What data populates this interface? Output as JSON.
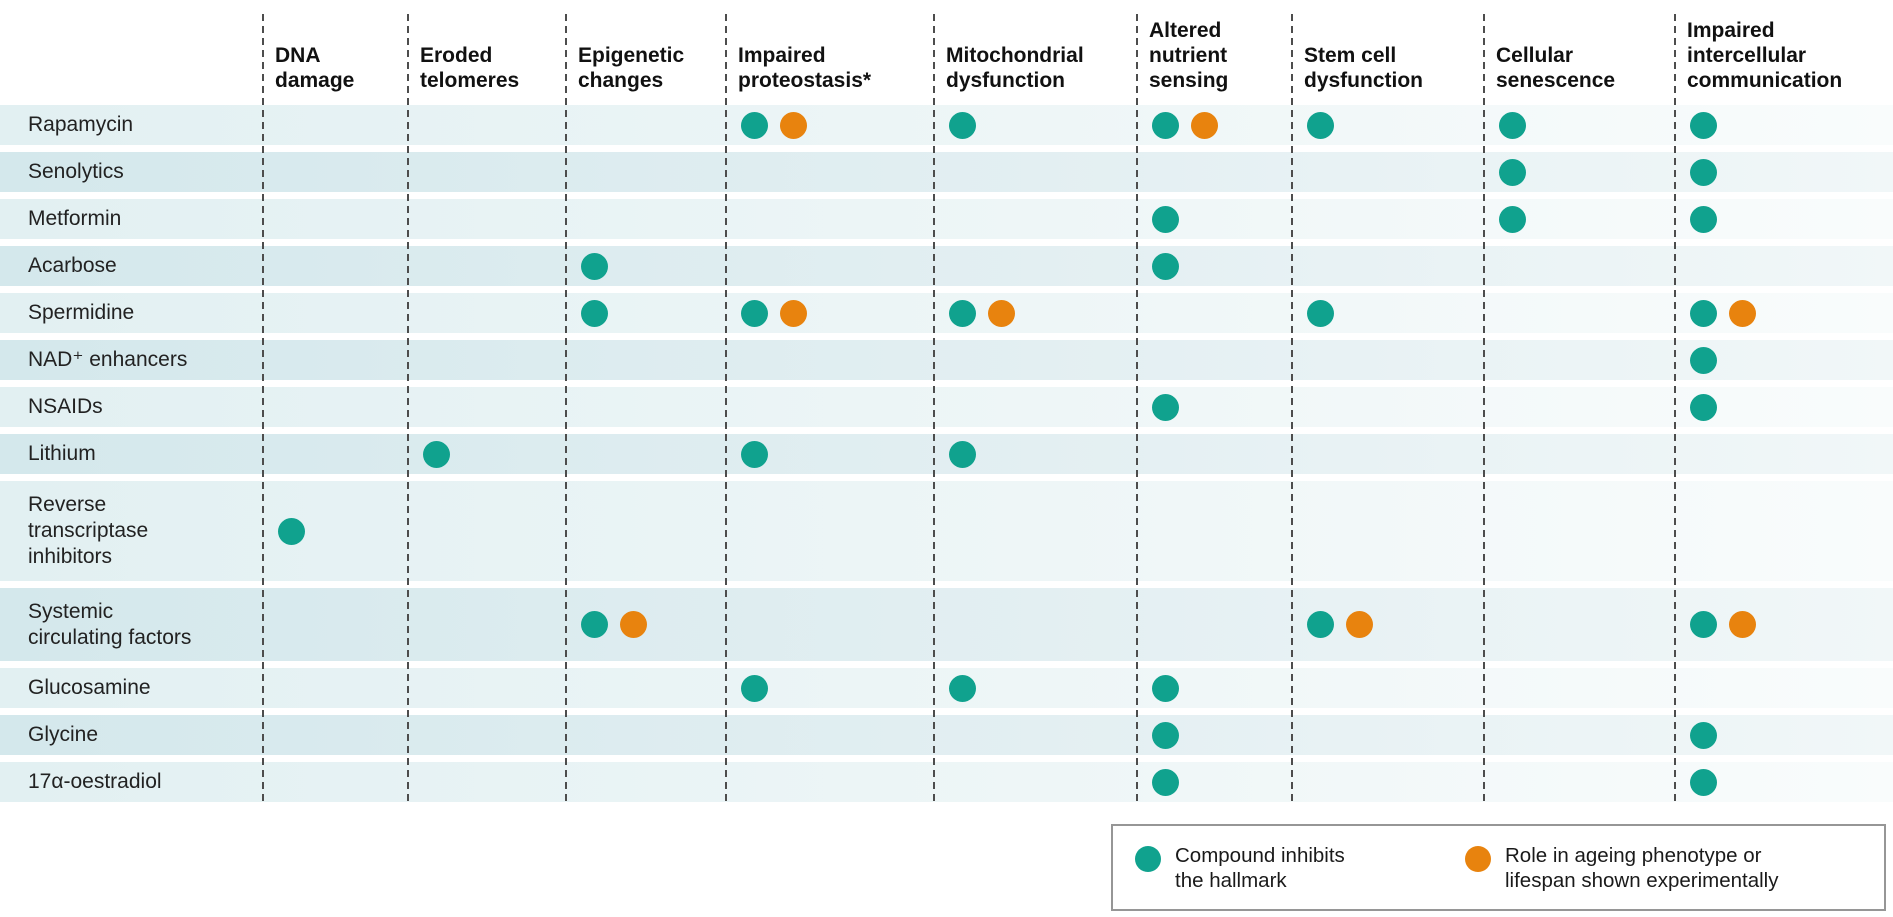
{
  "table": {
    "columns": [
      {
        "label": "DNA\ndamage"
      },
      {
        "label": "Eroded\ntelomeres"
      },
      {
        "label": "Epigenetic\nchanges"
      },
      {
        "label": "Impaired\nproteostasis*"
      },
      {
        "label": "Mitochondrial\ndysfunction"
      },
      {
        "label": "Altered\nnutrient\nsensing"
      },
      {
        "label": "Stem cell\ndysfunction"
      },
      {
        "label": "Cellular\nsenescence"
      },
      {
        "label": "Impaired\nintercellular\ncommunication"
      }
    ],
    "rows": [
      {
        "label": "Rapamycin",
        "cells": [
          "",
          "",
          "",
          "TO",
          "T",
          "TO",
          "T",
          "T",
          "T"
        ]
      },
      {
        "label": "Senolytics",
        "cells": [
          "",
          "",
          "",
          "",
          "",
          "",
          "",
          "T",
          "T"
        ]
      },
      {
        "label": "Metformin",
        "cells": [
          "",
          "",
          "",
          "",
          "",
          "T",
          "",
          "T",
          "T"
        ]
      },
      {
        "label": "Acarbose",
        "cells": [
          "",
          "",
          "T",
          "",
          "",
          "T",
          "",
          "",
          ""
        ]
      },
      {
        "label": "Spermidine",
        "cells": [
          "",
          "",
          "T",
          "TO",
          "TO",
          "",
          "T",
          "",
          "TO"
        ]
      },
      {
        "label": "NAD⁺ enhancers",
        "cells": [
          "",
          "",
          "",
          "",
          "",
          "",
          "",
          "",
          "T"
        ]
      },
      {
        "label": "NSAIDs",
        "cells": [
          "",
          "",
          "",
          "",
          "",
          "T",
          "",
          "",
          "T"
        ]
      },
      {
        "label": "Lithium",
        "cells": [
          "",
          "T",
          "",
          "T",
          "T",
          "",
          "",
          "",
          ""
        ]
      },
      {
        "label": "Reverse\ntranscriptase\ninhibitors",
        "cells": [
          "T",
          "",
          "",
          "",
          "",
          "",
          "",
          "",
          ""
        ]
      },
      {
        "label": "Systemic\ncirculating factors",
        "cells": [
          "",
          "",
          "TO",
          "",
          "",
          "",
          "TO",
          "",
          "TO"
        ]
      },
      {
        "label": "Glucosamine",
        "cells": [
          "",
          "",
          "",
          "T",
          "T",
          "T",
          "",
          "",
          ""
        ]
      },
      {
        "label": "Glycine",
        "cells": [
          "",
          "",
          "",
          "",
          "",
          "T",
          "",
          "",
          "T"
        ]
      },
      {
        "label": "17α-oestradiol",
        "cells": [
          "",
          "",
          "",
          "",
          "",
          "T",
          "",
          "",
          "T"
        ]
      }
    ]
  },
  "marker_codes": {
    "T": "teal dot — compound inhibits the hallmark",
    "TO": "teal dot + orange dot — inhibits hallmark and experimental evidence"
  },
  "legend": {
    "items": [
      {
        "marker": "teal",
        "label": "Compound inhibits\nthe hallmark"
      },
      {
        "marker": "orange",
        "label": "Role in ageing phenotype or\nlifespan shown experimentally"
      }
    ]
  },
  "colors": {
    "teal": "#10A28E",
    "orange": "#E8830E"
  },
  "chart_data": {
    "type": "table",
    "title": "",
    "columns": [
      "DNA damage",
      "Eroded telomeres",
      "Epigenetic changes",
      "Impaired proteostasis*",
      "Mitochondrial dysfunction",
      "Altered nutrient sensing",
      "Stem cell dysfunction",
      "Cellular senescence",
      "Impaired intercellular communication"
    ],
    "rows": [
      "Rapamycin",
      "Senolytics",
      "Metformin",
      "Acarbose",
      "Spermidine",
      "NAD⁺ enhancers",
      "NSAIDs",
      "Lithium",
      "Reverse transcriptase inhibitors",
      "Systemic circulating factors",
      "Glucosamine",
      "Glycine",
      "17α-oestradiol"
    ],
    "series": [
      {
        "name": "Compound inhibits the hallmark (teal)",
        "values": [
          [
            "Rapamycin",
            [
              "Impaired proteostasis*",
              "Mitochondrial dysfunction",
              "Altered nutrient sensing",
              "Stem cell dysfunction",
              "Cellular senescence",
              "Impaired intercellular communication"
            ]
          ],
          [
            "Senolytics",
            [
              "Cellular senescence",
              "Impaired intercellular communication"
            ]
          ],
          [
            "Metformin",
            [
              "Altered nutrient sensing",
              "Cellular senescence",
              "Impaired intercellular communication"
            ]
          ],
          [
            "Acarbose",
            [
              "Epigenetic changes",
              "Altered nutrient sensing"
            ]
          ],
          [
            "Spermidine",
            [
              "Epigenetic changes",
              "Impaired proteostasis*",
              "Mitochondrial dysfunction",
              "Stem cell dysfunction",
              "Impaired intercellular communication"
            ]
          ],
          [
            "NAD⁺ enhancers",
            [
              "Impaired intercellular communication"
            ]
          ],
          [
            "NSAIDs",
            [
              "Altered nutrient sensing",
              "Impaired intercellular communication"
            ]
          ],
          [
            "Lithium",
            [
              "Eroded telomeres",
              "Impaired proteostasis*",
              "Mitochondrial dysfunction"
            ]
          ],
          [
            "Reverse transcriptase inhibitors",
            [
              "DNA damage"
            ]
          ],
          [
            "Systemic circulating factors",
            [
              "Epigenetic changes",
              "Stem cell dysfunction",
              "Impaired intercellular communication"
            ]
          ],
          [
            "Glucosamine",
            [
              "Impaired proteostasis*",
              "Mitochondrial dysfunction",
              "Altered nutrient sensing"
            ]
          ],
          [
            "Glycine",
            [
              "Altered nutrient sensing",
              "Impaired intercellular communication"
            ]
          ],
          [
            "17α-oestradiol",
            [
              "Altered nutrient sensing",
              "Impaired intercellular communication"
            ]
          ]
        ]
      },
      {
        "name": "Role in ageing phenotype or lifespan shown experimentally (orange)",
        "values": [
          [
            "Rapamycin",
            [
              "Impaired proteostasis*",
              "Altered nutrient sensing"
            ]
          ],
          [
            "Spermidine",
            [
              "Impaired proteostasis*",
              "Mitochondrial dysfunction",
              "Impaired intercellular communication"
            ]
          ],
          [
            "Systemic circulating factors",
            [
              "Epigenetic changes",
              "Stem cell dysfunction",
              "Impaired intercellular communication"
            ]
          ]
        ]
      }
    ]
  }
}
